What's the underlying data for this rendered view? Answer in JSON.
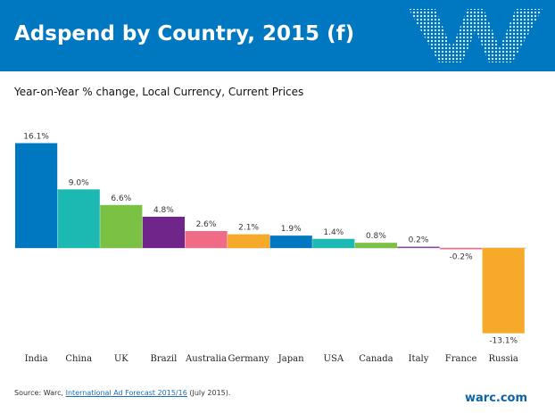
{
  "header": {
    "title": "Adspend by Country, 2015 (f)",
    "logo_text": "W",
    "background_color": "#0077c1"
  },
  "chart_data": {
    "type": "bar",
    "title": "Adspend by Country, 2015 (f)",
    "subtitle": "Year-on-Year % change, Local Currency, Current Prices",
    "categories": [
      "India",
      "China",
      "UK",
      "Brazil",
      "Australia",
      "Germany",
      "Japan",
      "USA",
      "Canada",
      "Italy",
      "France",
      "Russia"
    ],
    "values": [
      16.1,
      9.0,
      6.6,
      4.8,
      2.6,
      2.1,
      1.9,
      1.4,
      0.8,
      0.2,
      -0.2,
      -13.1
    ],
    "data_labels": [
      "16.1%",
      "9.0%",
      "6.6%",
      "4.8%",
      "2.6%",
      "2.1%",
      "1.9%",
      "1.4%",
      "0.8%",
      "0.2%",
      "-0.2%",
      "-13.1%"
    ],
    "colors": [
      "#0077c1",
      "#1cb9b2",
      "#7bc143",
      "#6f2589",
      "#ef6b86",
      "#f7a929",
      "#0077c1",
      "#1cb9b2",
      "#7bc143",
      "#8a4a9e",
      "#ef6b86",
      "#f7a929"
    ],
    "xlabel": "",
    "ylabel": "",
    "grid": false,
    "legend": "none"
  },
  "footer": {
    "source_prefix": "Source: Warc, ",
    "source_link": "International Ad Forecast 2015/16",
    "source_suffix": " (July 2015).",
    "brand": "warc.com"
  }
}
